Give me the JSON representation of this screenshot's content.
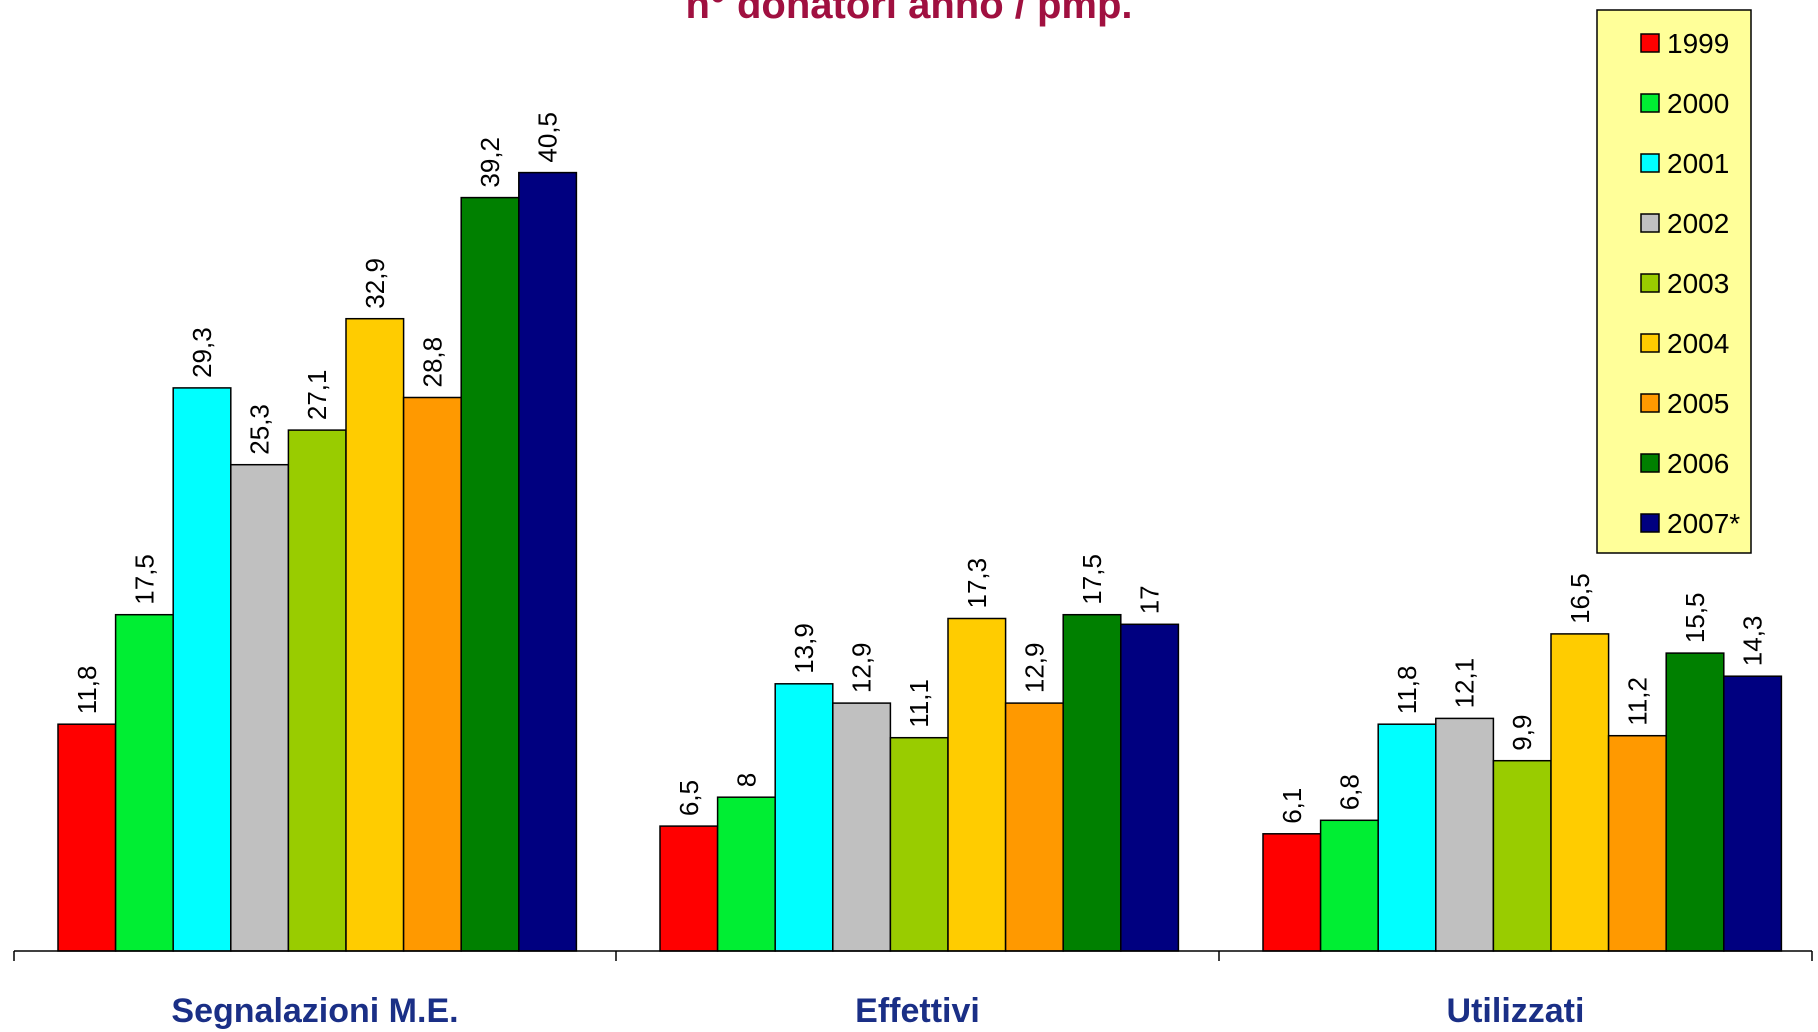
{
  "chart_data": {
    "type": "bar",
    "title": "n° donatori anno / pmp.",
    "categories": [
      "Segnalazioni M.E.",
      "Effettivi",
      "Utilizzati"
    ],
    "series": [
      {
        "name": "1999",
        "color": "#ff0000",
        "values": [
          11.8,
          6.5,
          6.1
        ]
      },
      {
        "name": "2000",
        "color": "#00ee33",
        "values": [
          17.5,
          8,
          6.8
        ]
      },
      {
        "name": "2001",
        "color": "#00ffff",
        "values": [
          29.3,
          13.9,
          11.8
        ]
      },
      {
        "name": "2002",
        "color": "#c0c0c0",
        "values": [
          25.3,
          12.9,
          12.1
        ]
      },
      {
        "name": "2003",
        "color": "#99cc00",
        "values": [
          27.1,
          11.1,
          9.9
        ]
      },
      {
        "name": "2004",
        "color": "#ffcc00",
        "values": [
          32.9,
          17.3,
          16.5
        ]
      },
      {
        "name": "2005",
        "color": "#ff9900",
        "values": [
          28.8,
          12.9,
          11.2
        ]
      },
      {
        "name": "2006",
        "color": "#008000",
        "values": [
          39.2,
          17.5,
          15.5
        ]
      },
      {
        "name": "2007*",
        "color": "#000080",
        "values": [
          40.5,
          17,
          14.3
        ]
      }
    ],
    "data_labels": [
      [
        "11,8",
        "17,5",
        "29,3",
        "25,3",
        "27,1",
        "32,9",
        "28,8",
        "39,2",
        "40,5"
      ],
      [
        "6,5",
        "8",
        "13,9",
        "12,9",
        "11,1",
        "17,3",
        "12,9",
        "17,5",
        "17"
      ],
      [
        "6,1",
        "6,8",
        "11,8",
        "12,1",
        "9,9",
        "16,5",
        "11,2",
        "15,5",
        "14,3"
      ]
    ],
    "ylim": [
      0,
      45
    ],
    "xlabel": "",
    "ylabel": "",
    "grid": false,
    "legend_position": "top-right",
    "legend_background": "#ffff99",
    "title_color": "#a01040",
    "category_label_color": "#1a2f86"
  }
}
